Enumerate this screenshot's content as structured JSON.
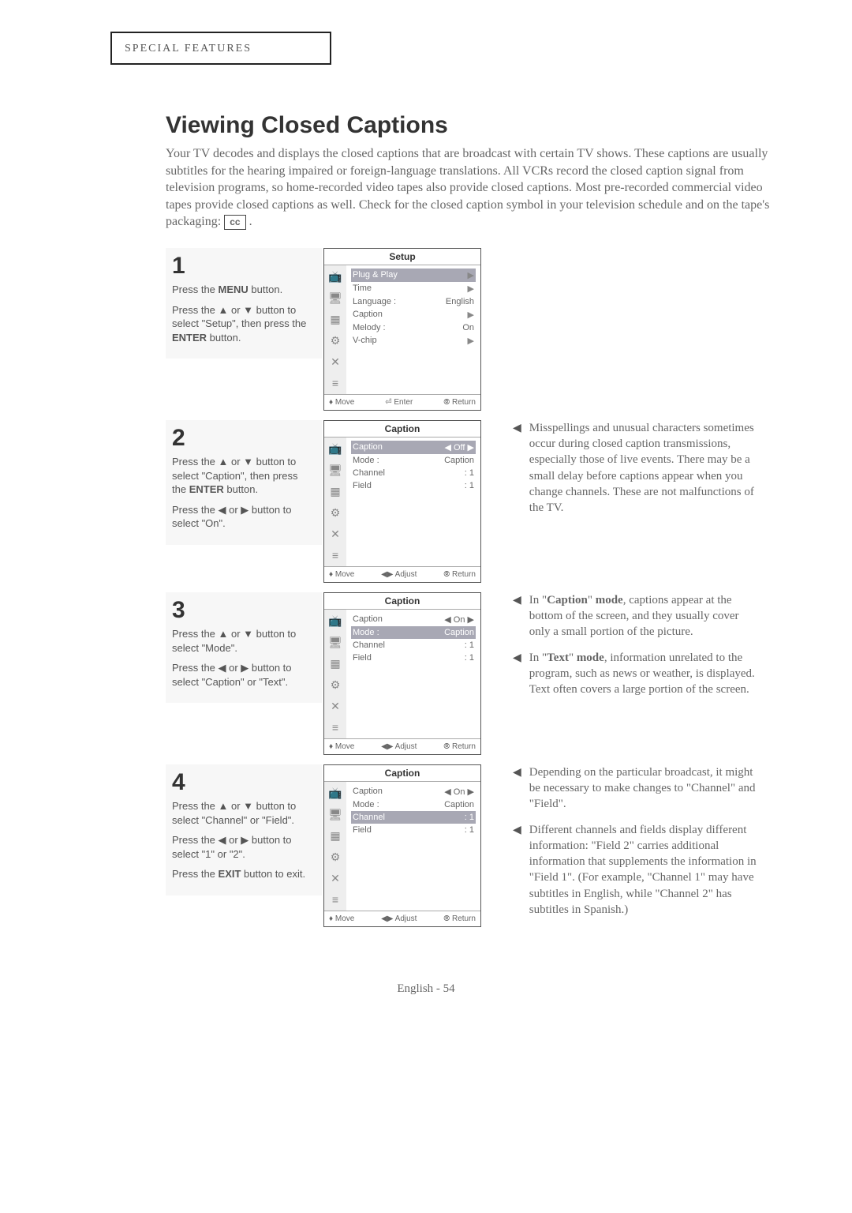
{
  "header_box": "SPECIAL FEATURES",
  "title": "Viewing Closed Captions",
  "intro": "Your TV decodes and displays the closed captions that are broadcast with certain TV shows. These captions are usually subtitles for the hearing impaired or foreign-language translations. All VCRs record the closed caption signal from television programs, so home-recorded video tapes also provide closed captions. Most pre-recorded commercial video tapes provide closed captions as well. Check for the closed caption symbol in your television schedule and on the tape's packaging:",
  "cc": "cc",
  "steps": [
    {
      "num": "1",
      "instructions": [
        "Press the <b>MENU</b> button.",
        "Press the ▲ or ▼ button to select \"Setup\", then press the <b>ENTER</b> button."
      ],
      "menu": {
        "title": "Setup",
        "rows": [
          {
            "label": "Plug & Play",
            "value": "",
            "sel": true,
            "arw": "▶"
          },
          {
            "label": "Time",
            "value": "",
            "sel": false,
            "arw": "▶"
          },
          {
            "label": "Language :",
            "value": "English",
            "sel": false,
            "arw": ""
          },
          {
            "label": "Caption",
            "value": "",
            "sel": false,
            "arw": "▶"
          },
          {
            "label": "Melody  :",
            "value": "On",
            "sel": false,
            "arw": ""
          },
          {
            "label": "V-chip",
            "value": "",
            "sel": false,
            "arw": "▶"
          }
        ],
        "foot_left": "♦ Move",
        "foot_mid": "⏎ Enter",
        "foot_right": "⦾ Return"
      }
    },
    {
      "num": "2",
      "instructions": [
        "Press the ▲ or ▼ button to select \"Caption\", then press the <b>ENTER</b> button.",
        "Press the ◀ or ▶ button to select \"On\"."
      ],
      "menu": {
        "title": "Caption",
        "rows": [
          {
            "label": "Caption",
            "value": "◀   Off   ▶",
            "sel": true,
            "arw": ""
          },
          {
            "label": "Mode   :",
            "value": "Caption",
            "sel": false,
            "arw": ""
          },
          {
            "label": "Channel",
            "value": ":   1",
            "sel": false,
            "arw": ""
          },
          {
            "label": "Field",
            "value": ":   1",
            "sel": false,
            "arw": ""
          }
        ],
        "foot_left": "♦ Move",
        "foot_mid": "◀▶ Adjust",
        "foot_right": "⦾ Return"
      },
      "note": [
        "Misspellings and unusual characters sometimes occur during closed caption transmissions, especially those of live events. There may be a small delay before captions appear when you change channels. These are not malfunctions of the TV."
      ]
    },
    {
      "num": "3",
      "instructions": [
        "Press the ▲ or ▼ button to select \"Mode\".",
        "Press the ◀ or ▶ button to select \"Caption\" or \"Text\"."
      ],
      "menu": {
        "title": "Caption",
        "rows": [
          {
            "label": "Caption",
            "value": "◀   On   ▶",
            "sel": false,
            "arw": ""
          },
          {
            "label": "Mode   :",
            "value": "Caption",
            "sel": true,
            "arw": ""
          },
          {
            "label": "Channel",
            "value": ":   1",
            "sel": false,
            "arw": ""
          },
          {
            "label": "Field",
            "value": ":   1",
            "sel": false,
            "arw": ""
          }
        ],
        "foot_left": "♦ Move",
        "foot_mid": "◀▶ Adjust",
        "foot_right": "⦾ Return"
      },
      "note": [
        "In \"<b>Caption</b>\" <b>mode</b>, captions appear at the bottom of the screen, and they usually cover only a small portion of the picture.",
        "In \"<b>Text</b>\" <b>mode</b>, information unrelated to the program, such as news or weather, is displayed. Text often covers a large portion of the screen."
      ]
    },
    {
      "num": "4",
      "instructions": [
        "Press the ▲ or ▼ button to select \"Channel\" or \"Field\".",
        "Press the ◀ or ▶ button to select \"1\" or \"2\".",
        "Press the <b>EXIT</b> button to exit."
      ],
      "menu": {
        "title": "Caption",
        "rows": [
          {
            "label": "Caption",
            "value": "◀   On   ▶",
            "sel": false,
            "arw": ""
          },
          {
            "label": "Mode   :",
            "value": "Caption",
            "sel": false,
            "arw": ""
          },
          {
            "label": "Channel",
            "value": ":   1",
            "sel": true,
            "arw": ""
          },
          {
            "label": "Field",
            "value": ":   1",
            "sel": false,
            "arw": ""
          }
        ],
        "foot_left": "♦ Move",
        "foot_mid": "◀▶ Adjust",
        "foot_right": "⦾ Return"
      },
      "note": [
        "Depending on the particular broadcast, it might be necessary to make changes to \"Channel\" and \"Field\".",
        "Different channels and fields display different information: \"Field 2\" carries additional information that supplements the information in \"Field 1\". (For example, \"Channel 1\" may have subtitles in English, while \"Channel 2\" has subtitles in Spanish.)"
      ]
    }
  ],
  "footer": "English - 54",
  "icons": [
    "📺",
    "🖥",
    "▦",
    "⚙",
    "✕",
    "≡"
  ],
  "colors": {
    "text": "#666",
    "title": "#333",
    "selbg": "#a8a8b4",
    "border": "#222"
  }
}
